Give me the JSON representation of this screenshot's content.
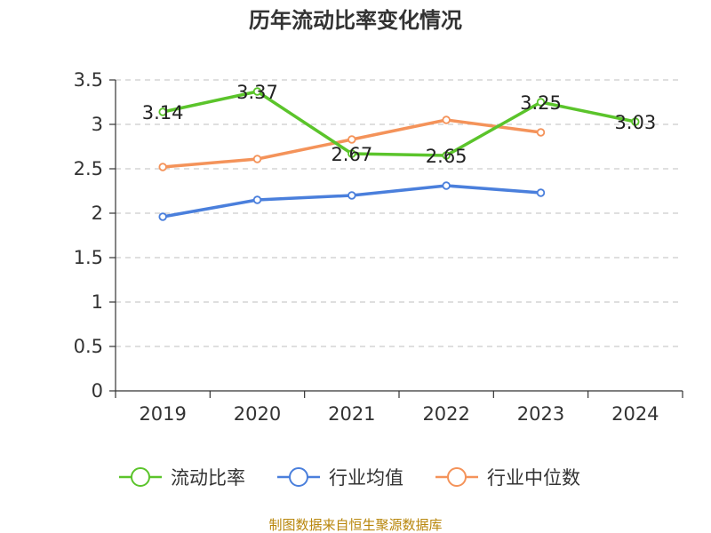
{
  "chart_data": {
    "type": "line",
    "title": "历年流动比率变化情况",
    "categories": [
      "2019",
      "2020",
      "2021",
      "2022",
      "2023",
      "2024"
    ],
    "y_ticks": [
      "0",
      "0.5",
      "1",
      "1.5",
      "2",
      "2.5",
      "3",
      "3.5"
    ],
    "ylim": [
      0,
      3.5
    ],
    "xlabel": "",
    "ylabel": "",
    "grid": "horizontal dashed",
    "legend_position": "bottom",
    "series": [
      {
        "name": "流动比率",
        "color": "#5bc42b",
        "values": [
          3.14,
          3.37,
          2.67,
          2.65,
          3.25,
          3.03
        ],
        "labels": [
          "3.14",
          "3.37",
          "2.67",
          "2.65",
          "3.25",
          "3.03"
        ]
      },
      {
        "name": "行业均值",
        "color": "#4a7fdc",
        "values": [
          1.96,
          2.15,
          2.2,
          2.31,
          2.23,
          null
        ]
      },
      {
        "name": "行业中位数",
        "color": "#f4935a",
        "values": [
          2.52,
          2.61,
          2.83,
          3.05,
          2.91,
          null
        ]
      }
    ]
  },
  "source_text": "制图数据来自恒生聚源数据库"
}
